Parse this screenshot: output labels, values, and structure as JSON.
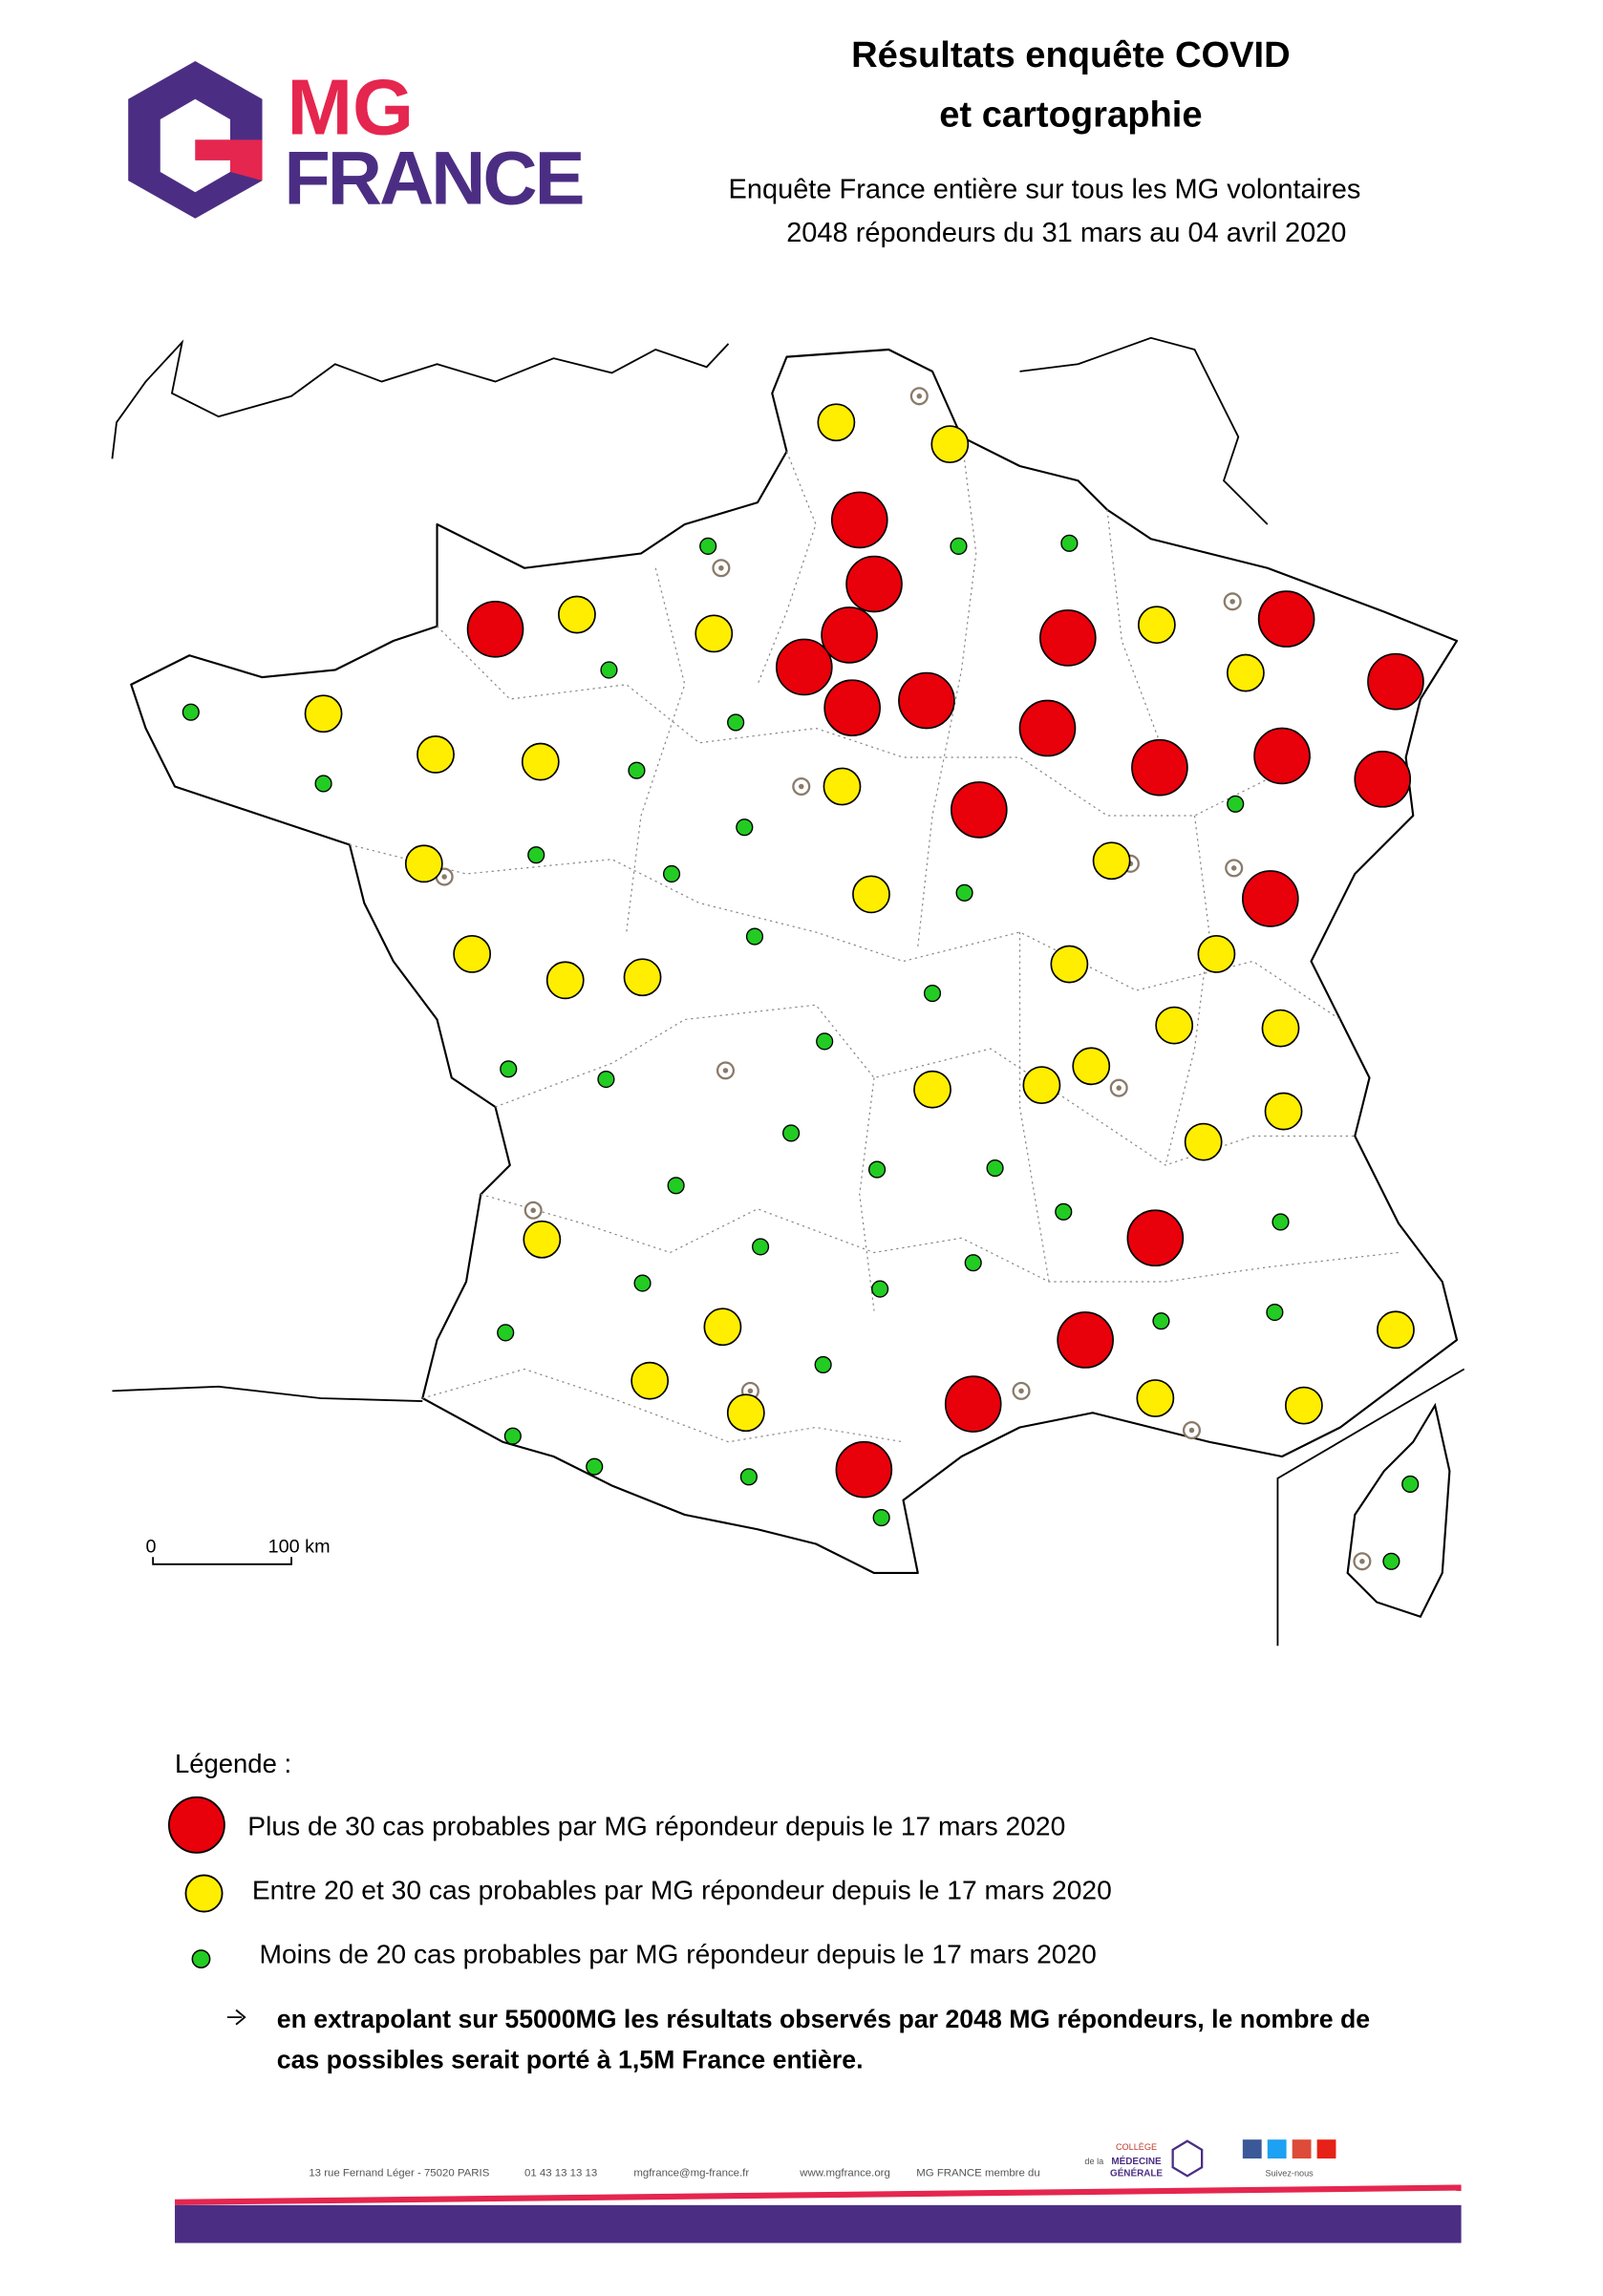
{
  "header": {
    "logo": {
      "top": "MG",
      "bottom": "FRANCE"
    },
    "title": [
      "Résultats enquête COVID",
      "et cartographie"
    ],
    "subtitle": [
      "Enquête France entière sur tous les MG volontaires",
      "2048 répondeurs du 31 mars au 04 avril 2020"
    ]
  },
  "map": {
    "scale": {
      "start": "0",
      "end": "100 km"
    }
  },
  "legend": {
    "title": "Légende :",
    "items": [
      "Plus de 30 cas probables par MG répondeur depuis le 17 mars 2020",
      "Entre 20 et 30 cas probables par MG répondeur depuis le 17 mars 2020",
      "Moins de 20 cas probables par MG répondeur depuis le 17 mars 2020"
    ]
  },
  "note": [
    "en extrapolant sur 55000MG les résultats observés par 2048 MG répondeurs, le nombre de",
    "cas possibles serait porté à 1,5M France entière."
  ],
  "footer": {
    "address": "13 rue Fernand Léger - 75020 PARIS",
    "phone": "01 43 13 13 13",
    "email": "mgfrance@mg-france.fr",
    "web": "www.mgfrance.org",
    "member": "MG FRANCE membre du",
    "college": [
      "COLLÈGE",
      "de la",
      "MÉDECINE",
      "GÉNÉRALE"
    ],
    "follow": "Suivez-nous"
  }
}
